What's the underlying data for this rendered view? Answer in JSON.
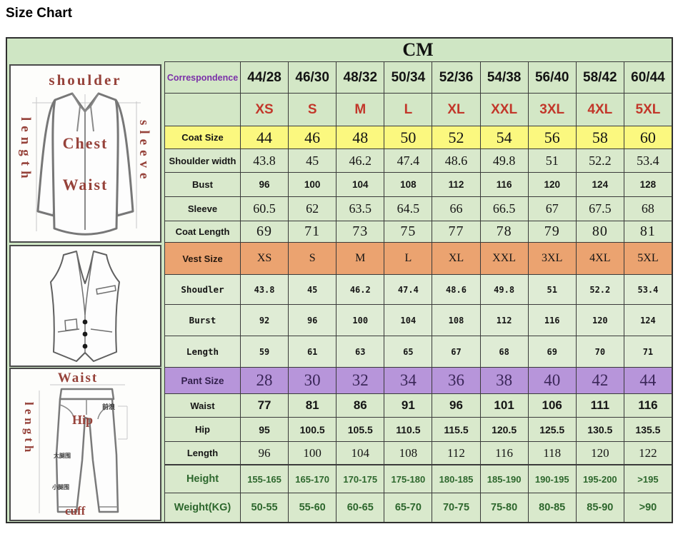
{
  "page": {
    "title": "Size Chart"
  },
  "table": {
    "unit_header": "CM",
    "rows": [
      {
        "key": "correspondence",
        "label": "Correspondence",
        "values": [
          "44/28",
          "46/30",
          "48/32",
          "50/34",
          "52/36",
          "54/38",
          "56/40",
          "58/42",
          "60/44"
        ]
      },
      {
        "key": "size",
        "label": "",
        "values": [
          "XS",
          "S",
          "M",
          "L",
          "XL",
          "XXL",
          "3XL",
          "4XL",
          "5XL"
        ]
      },
      {
        "key": "coat-size",
        "label": "Coat Size",
        "bg": "#fbf87f",
        "values": [
          "44",
          "46",
          "48",
          "50",
          "52",
          "54",
          "56",
          "58",
          "60"
        ]
      },
      {
        "key": "shoulder-width",
        "label": "Shoulder width",
        "values": [
          "43.8",
          "45",
          "46.2",
          "47.4",
          "48.6",
          "49.8",
          "51",
          "52.2",
          "53.4"
        ]
      },
      {
        "key": "bust",
        "label": "Bust",
        "values": [
          "96",
          "100",
          "104",
          "108",
          "112",
          "116",
          "120",
          "124",
          "128"
        ]
      },
      {
        "key": "sleeve",
        "label": "Sleeve",
        "values": [
          "60.5",
          "62",
          "63.5",
          "64.5",
          "66",
          "66.5",
          "67",
          "67.5",
          "68"
        ]
      },
      {
        "key": "coat-length",
        "label": "Coat Length",
        "values": [
          "69",
          "71",
          "73",
          "75",
          "77",
          "78",
          "79",
          "80",
          "81"
        ]
      },
      {
        "key": "vest-size",
        "label": "Vest Size",
        "bg": "#eba370",
        "values": [
          "XS",
          "S",
          "M",
          "L",
          "XL",
          "XXL",
          "3XL",
          "4XL",
          "5XL"
        ]
      },
      {
        "key": "vest-shoulder",
        "label": "Shoudler",
        "values": [
          "43.8",
          "45",
          "46.2",
          "47.4",
          "48.6",
          "49.8",
          "51",
          "52.2",
          "53.4"
        ]
      },
      {
        "key": "vest-burst",
        "label": "Burst",
        "values": [
          "92",
          "96",
          "100",
          "104",
          "108",
          "112",
          "116",
          "120",
          "124"
        ]
      },
      {
        "key": "vest-length",
        "label": "Length",
        "values": [
          "59",
          "61",
          "63",
          "65",
          "67",
          "68",
          "69",
          "70",
          "71"
        ]
      },
      {
        "key": "pant-size",
        "label": "Pant Size",
        "bg": "#b795da",
        "values": [
          "28",
          "30",
          "32",
          "34",
          "36",
          "38",
          "40",
          "42",
          "44"
        ]
      },
      {
        "key": "waist",
        "label": "Waist",
        "values": [
          "77",
          "81",
          "86",
          "91",
          "96",
          "101",
          "106",
          "111",
          "116"
        ]
      },
      {
        "key": "hip",
        "label": "Hip",
        "values": [
          "95",
          "100.5",
          "105.5",
          "110.5",
          "115.5",
          "120.5",
          "125.5",
          "130.5",
          "135.5"
        ]
      },
      {
        "key": "pant-length",
        "label": "Length",
        "values": [
          "96",
          "100",
          "104",
          "108",
          "112",
          "116",
          "118",
          "120",
          "122"
        ]
      },
      {
        "key": "height",
        "label": "Height",
        "values": [
          "155-165",
          "165-170",
          "170-175",
          "175-180",
          "180-185",
          "185-190",
          "190-195",
          "195-200",
          ">195"
        ]
      },
      {
        "key": "weight",
        "label": "Weight(KG)",
        "values": [
          "50-55",
          "55-60",
          "60-65",
          "65-70",
          "70-75",
          "75-80",
          "80-85",
          "85-90",
          ">90"
        ]
      }
    ]
  },
  "diagrams": {
    "jacket": {
      "shoulder": "shoulder",
      "length": "length",
      "sleeve": "sleeve",
      "chest": "Chest",
      "waist": "Waist"
    },
    "pants": {
      "waist": "Waist",
      "length": "length",
      "hip": "Hip",
      "cuff": "cuff",
      "front_rise": "前浪",
      "thigh": "大腿围",
      "calf": "小腿围"
    }
  },
  "colors": {
    "table_bg": "#cfe6c4",
    "cell_bg": "#d9e9cc",
    "coat_row_bg": "#fbf87f",
    "vest_row_bg": "#eba370",
    "pant_row_bg": "#b795da",
    "size_text": "#c2372a",
    "correspondence_text": "#7a2fa8",
    "height_weight_text": "#2d672d",
    "diagram_label": "#96423a"
  }
}
